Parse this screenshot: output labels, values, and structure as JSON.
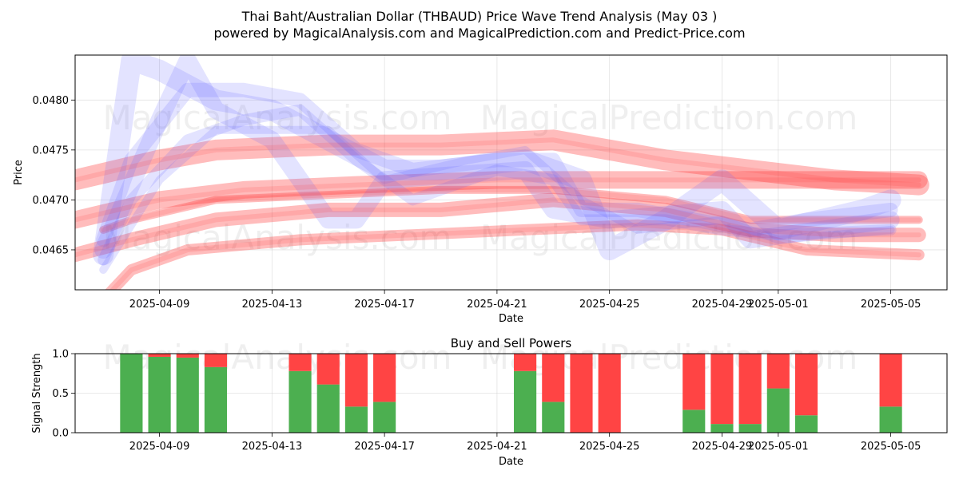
{
  "header": {
    "title": "Thai Baht/Australian Dollar (THBAUD) Price Wave Trend Analysis (May 03 )",
    "subtitle": "powered by MagicalAnalysis.com and MagicalPrediction.com and Predict-Price.com"
  },
  "watermarks": {
    "left": "MagicalAnalysis.com",
    "right": "MagicalPrediction.com"
  },
  "colors": {
    "buy": "#4caf50",
    "sell": "#ff4444",
    "wave_blue": "#6666ff",
    "wave_red": "#ff3333"
  },
  "chart_data": [
    {
      "type": "area",
      "title": "",
      "xlabel": "Date",
      "ylabel": "Price",
      "x_ticks": [
        "2025-04-09",
        "2025-04-13",
        "2025-04-17",
        "2025-04-21",
        "2025-04-25",
        "2025-04-29",
        "2025-05-01",
        "2025-05-05"
      ],
      "y_ticks": [
        "0.0465",
        "0.0470",
        "0.0475",
        "0.0480"
      ],
      "xlim": [
        "2025-04-06",
        "2025-05-07"
      ],
      "ylim": [
        0.0461,
        0.04845
      ],
      "grid": true,
      "blue_waves": [
        [
          [
            "2025-04-07",
            0.04645
          ],
          [
            "2025-04-08",
            0.0484
          ],
          [
            "2025-04-09",
            0.0483
          ],
          [
            "2025-04-11",
            0.048
          ],
          [
            "2025-04-13",
            0.0479
          ],
          [
            "2025-04-15",
            0.0476
          ],
          [
            "2025-04-17",
            0.0473
          ],
          [
            "2025-04-19",
            0.0473
          ],
          [
            "2025-04-22",
            0.0474
          ],
          [
            "2025-04-24",
            0.0472
          ],
          [
            "2025-04-25",
            0.0465
          ],
          [
            "2025-04-27",
            0.0468
          ],
          [
            "2025-04-29",
            0.0472
          ],
          [
            "2025-05-01",
            0.0467
          ],
          [
            "2025-05-04",
            0.0469
          ],
          [
            "2025-05-05",
            0.047
          ]
        ],
        [
          [
            "2025-04-07",
            0.0465
          ],
          [
            "2025-04-09",
            0.0478
          ],
          [
            "2025-04-10",
            0.0484
          ],
          [
            "2025-04-11",
            0.0479
          ],
          [
            "2025-04-13",
            0.0476
          ],
          [
            "2025-04-15",
            0.0468
          ],
          [
            "2025-04-16",
            0.0468
          ],
          [
            "2025-04-17",
            0.0472
          ],
          [
            "2025-04-22",
            0.0473
          ],
          [
            "2025-04-23",
            0.0469
          ],
          [
            "2025-04-25",
            0.0468
          ],
          [
            "2025-04-29",
            0.0469
          ],
          [
            "2025-04-30",
            0.0466
          ],
          [
            "2025-05-05",
            0.0468
          ]
        ],
        [
          [
            "2025-04-07",
            0.0466
          ],
          [
            "2025-04-08",
            0.0474
          ],
          [
            "2025-04-10",
            0.0481
          ],
          [
            "2025-04-12",
            0.0481
          ],
          [
            "2025-04-14",
            0.048
          ],
          [
            "2025-04-16",
            0.0475
          ],
          [
            "2025-04-18",
            0.0473
          ],
          [
            "2025-04-21",
            0.0474
          ],
          [
            "2025-04-23",
            0.0474
          ],
          [
            "2025-04-24",
            0.0469
          ],
          [
            "2025-04-26",
            0.0469
          ],
          [
            "2025-04-28",
            0.0468
          ],
          [
            "2025-04-30",
            0.0467
          ],
          [
            "2025-05-02",
            0.0468
          ],
          [
            "2025-05-05",
            0.0469
          ]
        ],
        [
          [
            "2025-04-07",
            0.0464
          ],
          [
            "2025-04-08",
            0.047
          ],
          [
            "2025-04-10",
            0.0476
          ],
          [
            "2025-04-12",
            0.0478
          ],
          [
            "2025-04-14",
            0.0479
          ],
          [
            "2025-04-16",
            0.0474
          ],
          [
            "2025-04-18",
            0.047
          ],
          [
            "2025-04-21",
            0.0473
          ],
          [
            "2025-04-23",
            0.0472
          ],
          [
            "2025-04-24",
            0.0468
          ],
          [
            "2025-04-27",
            0.0468
          ],
          [
            "2025-04-29",
            0.0467
          ],
          [
            "2025-05-01",
            0.04665
          ],
          [
            "2025-05-05",
            0.0467
          ]
        ],
        [
          [
            "2025-04-07",
            0.0463
          ],
          [
            "2025-04-09",
            0.0472
          ],
          [
            "2025-04-11",
            0.0477
          ],
          [
            "2025-04-13",
            0.0477
          ],
          [
            "2025-04-15",
            0.0477
          ],
          [
            "2025-04-17",
            0.0472
          ],
          [
            "2025-04-20",
            0.0474
          ],
          [
            "2025-04-22",
            0.0475
          ],
          [
            "2025-04-24",
            0.047
          ],
          [
            "2025-04-26",
            0.0467
          ],
          [
            "2025-04-29",
            0.0468
          ],
          [
            "2025-05-01",
            0.0466
          ],
          [
            "2025-05-05",
            0.0467
          ]
        ]
      ],
      "red_waves": [
        [
          [
            "2025-04-06",
            0.0472
          ],
          [
            "2025-04-09",
            0.0474
          ],
          [
            "2025-04-11",
            0.0475
          ],
          [
            "2025-04-15",
            0.04755
          ],
          [
            "2025-04-19",
            0.04755
          ],
          [
            "2025-04-23",
            0.0476
          ],
          [
            "2025-04-27",
            0.0474
          ],
          [
            "2025-04-30",
            0.0473
          ],
          [
            "2025-05-03",
            0.0472
          ],
          [
            "2025-05-06",
            0.04715
          ]
        ],
        [
          [
            "2025-04-06",
            0.0468
          ],
          [
            "2025-04-09",
            0.047
          ],
          [
            "2025-04-12",
            0.0471
          ],
          [
            "2025-04-16",
            0.04715
          ],
          [
            "2025-04-21",
            0.0472
          ],
          [
            "2025-04-25",
            0.0472
          ],
          [
            "2025-04-29",
            0.0472
          ],
          [
            "2025-05-02",
            0.0472
          ],
          [
            "2025-05-06",
            0.0472
          ]
        ],
        [
          [
            "2025-04-06",
            0.04645
          ],
          [
            "2025-04-08",
            0.0466
          ],
          [
            "2025-04-11",
            0.0468
          ],
          [
            "2025-04-15",
            0.0469
          ],
          [
            "2025-04-19",
            0.0469
          ],
          [
            "2025-04-23",
            0.047
          ],
          [
            "2025-04-27",
            0.0469
          ],
          [
            "2025-04-30",
            0.0467
          ],
          [
            "2025-05-03",
            0.04665
          ],
          [
            "2025-05-06",
            0.04665
          ]
        ],
        [
          [
            "2025-04-07",
            0.046
          ],
          [
            "2025-04-08",
            0.0463
          ],
          [
            "2025-04-10",
            0.0465
          ],
          [
            "2025-04-14",
            0.0466
          ],
          [
            "2025-04-18",
            0.04665
          ],
          [
            "2025-04-22",
            0.0467
          ],
          [
            "2025-04-26",
            0.04675
          ],
          [
            "2025-04-29",
            0.0467
          ],
          [
            "2025-05-02",
            0.0465
          ],
          [
            "2025-05-06",
            0.04645
          ]
        ],
        [
          [
            "2025-04-07",
            0.0467
          ],
          [
            "2025-04-08",
            0.0468
          ],
          [
            "2025-04-11",
            0.047
          ],
          [
            "2025-04-15",
            0.04705
          ],
          [
            "2025-04-19",
            0.0471
          ],
          [
            "2025-04-23",
            0.0471
          ],
          [
            "2025-04-27",
            0.047
          ],
          [
            "2025-04-30",
            0.0468
          ],
          [
            "2025-05-03",
            0.0468
          ],
          [
            "2025-05-06",
            0.0468
          ]
        ]
      ]
    },
    {
      "type": "bar",
      "title": "Buy and Sell Powers",
      "xlabel": "Date",
      "ylabel": "Signal Strength",
      "x_ticks": [
        "2025-04-09",
        "2025-04-13",
        "2025-04-17",
        "2025-04-21",
        "2025-04-25",
        "2025-04-29",
        "2025-05-01",
        "2025-05-05"
      ],
      "y_ticks": [
        "0.0",
        "0.5",
        "1.0"
      ],
      "xlim": [
        "2025-04-06",
        "2025-05-07"
      ],
      "ylim": [
        0,
        1
      ],
      "grid": true,
      "series": [
        {
          "name": "Buy",
          "values": [
            1.0,
            0.96,
            0.95,
            0.83,
            0.78,
            0.61,
            0.33,
            0.39,
            0.78,
            0.39,
            0.0,
            0.0,
            0.29,
            0.11,
            0.11,
            0.56,
            0.22,
            0.33
          ]
        },
        {
          "name": "Sell",
          "values": [
            0.0,
            0.04,
            0.05,
            0.17,
            0.22,
            0.39,
            0.67,
            0.61,
            0.22,
            0.61,
            1.0,
            1.0,
            0.71,
            0.89,
            0.89,
            0.44,
            0.78,
            0.67
          ]
        }
      ],
      "dates": [
        "2025-04-08",
        "2025-04-09",
        "2025-04-10",
        "2025-04-11",
        "2025-04-14",
        "2025-04-15",
        "2025-04-16",
        "2025-04-17",
        "2025-04-22",
        "2025-04-23",
        "2025-04-24",
        "2025-04-25",
        "2025-04-28",
        "2025-04-29",
        "2025-04-30",
        "2025-05-01",
        "2025-05-02",
        "2025-05-05"
      ]
    }
  ]
}
